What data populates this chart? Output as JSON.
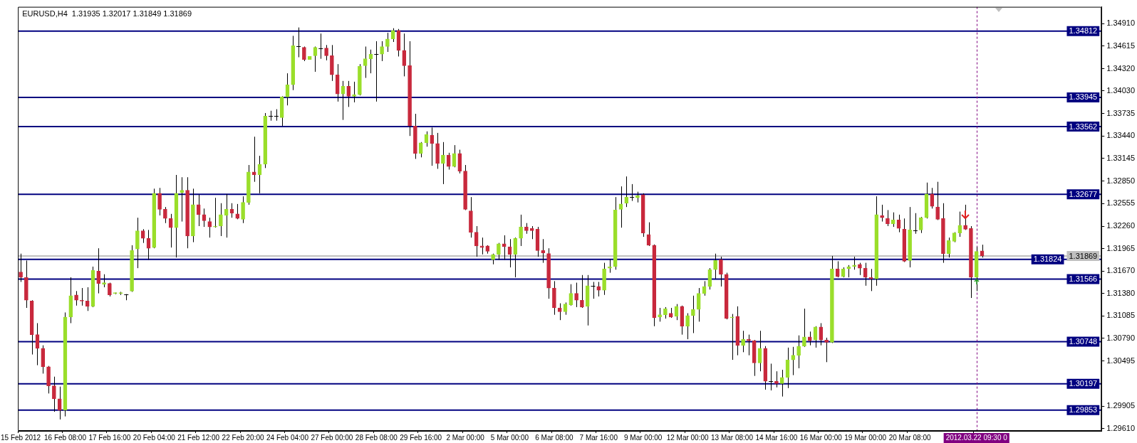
{
  "chart_data": {
    "type": "candlestick",
    "title": "EURUSD,H4  1.31935 1.32017 1.31849 1.31869",
    "categories": [
      "15 Feb 2012",
      null,
      null,
      null,
      null,
      null,
      null,
      null,
      "16 Feb 08:00",
      null,
      null,
      null,
      null,
      null,
      null,
      null,
      "17 Feb 16:00",
      null,
      null,
      null,
      null,
      null,
      null,
      null,
      "20 Feb 04:00",
      null,
      null,
      null,
      null,
      null,
      null,
      null,
      "21 Feb 12:00",
      null,
      null,
      null,
      null,
      null,
      null,
      null,
      "22 Feb 20:00",
      null,
      null,
      null,
      null,
      null,
      null,
      null,
      "24 Feb 04:00",
      null,
      null,
      null,
      null,
      null,
      null,
      null,
      "27 Feb 00:00",
      null,
      null,
      null,
      null,
      null,
      null,
      null,
      "28 Feb 08:00",
      null,
      null,
      null,
      null,
      null,
      null,
      null,
      "29 Feb 16:00",
      null,
      null,
      null,
      null,
      null,
      null,
      null,
      "2 Mar 00:00",
      null,
      null,
      null,
      null,
      null,
      null,
      null,
      "5 Mar 00:00",
      null,
      null,
      null,
      null,
      null,
      null,
      null,
      "6 Mar 08:00",
      null,
      null,
      null,
      null,
      null,
      null,
      null,
      "7 Mar 16:00",
      null,
      null,
      null,
      null,
      null,
      null,
      null,
      "9 Mar 00:00",
      null,
      null,
      null,
      null,
      null,
      null,
      null,
      "12 Mar 00:00",
      null,
      null,
      null,
      null,
      null,
      null,
      null,
      "13 Mar 08:00",
      null,
      null,
      null,
      null,
      null,
      null,
      null,
      "14 Mar 16:00",
      null,
      null,
      null,
      null,
      null,
      null,
      null,
      "16 Mar 00:00",
      null,
      null,
      null,
      null,
      null,
      null,
      null,
      "19 Mar 00:00",
      null,
      null,
      null,
      null,
      null,
      null,
      null,
      "20 Mar 08:00",
      null,
      null,
      null,
      null,
      null,
      null,
      null,
      null,
      null,
      null,
      null,
      "2012.03.22 09:30 0",
      null,
      null,
      null,
      null,
      null,
      null,
      null,
      null,
      null,
      null,
      null,
      null,
      null,
      null,
      null,
      null,
      null,
      null,
      null,
      null,
      null,
      null
    ],
    "ohlc": [
      [
        1.3166,
        1.319,
        1.3153,
        1.3159
      ],
      [
        1.3159,
        1.3181,
        1.3119,
        1.3129
      ],
      [
        1.3128,
        1.3129,
        1.3058,
        1.3084
      ],
      [
        1.3084,
        1.3099,
        1.3044,
        1.3066
      ],
      [
        1.3066,
        1.307,
        1.3033,
        1.3042
      ],
      [
        1.3042,
        1.3043,
        1.3007,
        1.3017
      ],
      [
        1.3017,
        1.3029,
        1.2983,
        1.3
      ],
      [
        1.3,
        1.3016,
        1.2973,
        1.2985
      ],
      [
        1.2985,
        1.3113,
        1.2977,
        1.3107
      ],
      [
        1.3107,
        1.3159,
        1.3099,
        1.3135
      ],
      [
        1.3136,
        1.3141,
        1.3122,
        1.3129
      ],
      [
        1.3129,
        1.3145,
        1.3122,
        1.3128
      ],
      [
        1.3128,
        1.3146,
        1.3115,
        1.3121
      ],
      [
        1.3121,
        1.3173,
        1.312,
        1.3168
      ],
      [
        1.3167,
        1.3197,
        1.3138,
        1.3151
      ],
      [
        1.315,
        1.3163,
        1.3146,
        1.3152
      ],
      [
        1.3151,
        1.3152,
        1.3134,
        1.3136
      ],
      [
        1.3138,
        1.3139,
        1.3137,
        1.3139
      ],
      [
        1.3138,
        1.314,
        1.3136,
        1.3139
      ],
      [
        1.3137,
        1.3137,
        1.3129,
        1.3137
      ],
      [
        1.3141,
        1.3201,
        1.314,
        1.3194
      ],
      [
        1.3196,
        1.3237,
        1.3171,
        1.322
      ],
      [
        1.322,
        1.3222,
        1.3204,
        1.321
      ],
      [
        1.321,
        1.3221,
        1.3182,
        1.3197
      ],
      [
        1.3198,
        1.3275,
        1.3197,
        1.3269
      ],
      [
        1.3269,
        1.3276,
        1.324,
        1.3248
      ],
      [
        1.3248,
        1.3251,
        1.323,
        1.3236
      ],
      [
        1.3236,
        1.3242,
        1.3198,
        1.3224
      ],
      [
        1.3224,
        1.3293,
        1.3185,
        1.3269
      ],
      [
        1.327,
        1.329,
        1.3232,
        1.3273
      ],
      [
        1.3273,
        1.329,
        1.3197,
        1.3213
      ],
      [
        1.3213,
        1.3275,
        1.3205,
        1.3254
      ],
      [
        1.3254,
        1.3267,
        1.3226,
        1.3241
      ],
      [
        1.3241,
        1.3249,
        1.3225,
        1.3233
      ],
      [
        1.3232,
        1.3237,
        1.3211,
        1.3225
      ],
      [
        1.3225,
        1.3263,
        1.3224,
        1.3226
      ],
      [
        1.3226,
        1.3256,
        1.3213,
        1.3241
      ],
      [
        1.324,
        1.3268,
        1.3211,
        1.3248
      ],
      [
        1.3248,
        1.3256,
        1.3237,
        1.3243
      ],
      [
        1.3242,
        1.3255,
        1.3235,
        1.3236
      ],
      [
        1.3235,
        1.3265,
        1.323,
        1.3257
      ],
      [
        1.3257,
        1.3306,
        1.3254,
        1.3297
      ],
      [
        1.3297,
        1.3343,
        1.3284,
        1.3293
      ],
      [
        1.3293,
        1.3318,
        1.3269,
        1.3307
      ],
      [
        1.3307,
        1.3374,
        1.3302,
        1.337
      ],
      [
        1.337,
        1.3377,
        1.3364,
        1.337
      ],
      [
        1.337,
        1.3379,
        1.3364,
        1.337
      ],
      [
        1.3368,
        1.3396,
        1.3357,
        1.3395
      ],
      [
        1.3395,
        1.3426,
        1.3384,
        1.3411
      ],
      [
        1.3411,
        1.3475,
        1.3404,
        1.3462
      ],
      [
        1.3461,
        1.3486,
        1.3447,
        1.3461
      ],
      [
        1.346,
        1.3461,
        1.3442,
        1.3444
      ],
      [
        1.3444,
        1.3448,
        1.3444,
        1.3448
      ],
      [
        1.3449,
        1.3461,
        1.3428,
        1.346
      ],
      [
        1.3459,
        1.3478,
        1.3445,
        1.3459
      ],
      [
        1.3459,
        1.3463,
        1.3443,
        1.3449
      ],
      [
        1.3449,
        1.3463,
        1.3416,
        1.3424
      ],
      [
        1.3424,
        1.3438,
        1.3389,
        1.3399
      ],
      [
        1.3399,
        1.3416,
        1.3365,
        1.3409
      ],
      [
        1.3409,
        1.3416,
        1.3382,
        1.3396
      ],
      [
        1.3396,
        1.3415,
        1.3388,
        1.3398
      ],
      [
        1.3398,
        1.3438,
        1.3397,
        1.3435
      ],
      [
        1.3436,
        1.3461,
        1.342,
        1.3445
      ],
      [
        1.3445,
        1.3457,
        1.3426,
        1.3451
      ],
      [
        1.3451,
        1.3468,
        1.3389,
        1.3451
      ],
      [
        1.3451,
        1.3468,
        1.3442,
        1.3461
      ],
      [
        1.3461,
        1.3479,
        1.3454,
        1.3471
      ],
      [
        1.3471,
        1.3485,
        1.3467,
        1.3482
      ],
      [
        1.3482,
        1.3484,
        1.3448,
        1.3456
      ],
      [
        1.3456,
        1.3478,
        1.3422,
        1.3436
      ],
      [
        1.3436,
        1.3468,
        1.3344,
        1.3357
      ],
      [
        1.3357,
        1.3373,
        1.3314,
        1.3321
      ],
      [
        1.3321,
        1.3336,
        1.3316,
        1.3335
      ],
      [
        1.3335,
        1.335,
        1.333,
        1.3346
      ],
      [
        1.3345,
        1.3355,
        1.3305,
        1.3334
      ],
      [
        1.3334,
        1.3348,
        1.3301,
        1.3308
      ],
      [
        1.3308,
        1.3336,
        1.3281,
        1.3319
      ],
      [
        1.3319,
        1.3322,
        1.33,
        1.3304
      ],
      [
        1.3304,
        1.3332,
        1.3303,
        1.3321
      ],
      [
        1.3321,
        1.3326,
        1.3295,
        1.3298
      ],
      [
        1.3298,
        1.3306,
        1.3247,
        1.3248
      ],
      [
        1.3246,
        1.3264,
        1.3211,
        1.3218
      ],
      [
        1.3218,
        1.3226,
        1.3186,
        1.32
      ],
      [
        1.32,
        1.3211,
        1.3189,
        1.3198
      ],
      [
        1.32,
        1.3201,
        1.319,
        1.3193
      ],
      [
        1.3182,
        1.319,
        1.3176,
        1.3189
      ],
      [
        1.3189,
        1.3204,
        1.3182,
        1.3203
      ],
      [
        1.3203,
        1.3214,
        1.3182,
        1.3199
      ],
      [
        1.3199,
        1.3209,
        1.3172,
        1.3189
      ],
      [
        1.3189,
        1.3211,
        1.3159,
        1.321
      ],
      [
        1.321,
        1.3241,
        1.32,
        1.3225
      ],
      [
        1.3225,
        1.323,
        1.3216,
        1.322
      ],
      [
        1.3223,
        1.3226,
        1.3209,
        1.322
      ],
      [
        1.3222,
        1.3225,
        1.3186,
        1.3194
      ],
      [
        1.3194,
        1.3209,
        1.3178,
        1.3191
      ],
      [
        1.319,
        1.3197,
        1.3131,
        1.3145
      ],
      [
        1.3145,
        1.3154,
        1.311,
        1.3119
      ],
      [
        1.3119,
        1.3125,
        1.3103,
        1.3114
      ],
      [
        1.3114,
        1.3126,
        1.311,
        1.3124
      ],
      [
        1.3123,
        1.315,
        1.3122,
        1.3138
      ],
      [
        1.3138,
        1.3152,
        1.312,
        1.3129
      ],
      [
        1.3129,
        1.3162,
        1.3119,
        1.312
      ],
      [
        1.3121,
        1.3162,
        1.3096,
        1.3148
      ],
      [
        1.3148,
        1.3153,
        1.3131,
        1.3148
      ],
      [
        1.3147,
        1.3153,
        1.3134,
        1.3142
      ],
      [
        1.3142,
        1.3178,
        1.3136,
        1.317
      ],
      [
        1.3171,
        1.3183,
        1.3165,
        1.3173
      ],
      [
        1.3173,
        1.3264,
        1.3169,
        1.3247
      ],
      [
        1.3248,
        1.3278,
        1.3224,
        1.3255
      ],
      [
        1.3256,
        1.3291,
        1.3251,
        1.3264
      ],
      [
        1.3264,
        1.3281,
        1.3259,
        1.3264
      ],
      [
        1.3263,
        1.3271,
        1.3257,
        1.3266
      ],
      [
        1.3267,
        1.3269,
        1.3212,
        1.3217
      ],
      [
        1.3215,
        1.3231,
        1.32,
        1.3201
      ],
      [
        1.3201,
        1.3202,
        1.3095,
        1.3106
      ],
      [
        1.3107,
        1.3119,
        1.3101,
        1.311
      ],
      [
        1.311,
        1.312,
        1.3105,
        1.3118
      ],
      [
        1.3112,
        1.3119,
        1.3106,
        1.3107
      ],
      [
        1.3108,
        1.3124,
        1.3103,
        1.3121
      ],
      [
        1.3121,
        1.3122,
        1.3084,
        1.3095
      ],
      [
        1.3095,
        1.3112,
        1.3078,
        1.3109
      ],
      [
        1.3109,
        1.3135,
        1.3086,
        1.3117
      ],
      [
        1.3117,
        1.3145,
        1.3101,
        1.3138
      ],
      [
        1.3138,
        1.3154,
        1.3135,
        1.3147
      ],
      [
        1.3147,
        1.3171,
        1.3143,
        1.3169
      ],
      [
        1.3169,
        1.319,
        1.3157,
        1.3181
      ],
      [
        1.3182,
        1.3186,
        1.3147,
        1.3163
      ],
      [
        1.3163,
        1.3165,
        1.3104,
        1.3105
      ],
      [
        1.3106,
        1.3111,
        1.3051,
        1.3107
      ],
      [
        1.3108,
        1.3121,
        1.3057,
        1.307
      ],
      [
        1.307,
        1.3089,
        1.3061,
        1.3078
      ],
      [
        1.3078,
        1.3084,
        1.3057,
        1.3076
      ],
      [
        1.3076,
        1.3077,
        1.303,
        1.3047
      ],
      [
        1.3047,
        1.3089,
        1.3036,
        1.3066
      ],
      [
        1.3066,
        1.3069,
        1.3012,
        1.3023
      ],
      [
        1.3023,
        1.3046,
        1.3011,
        1.3023
      ],
      [
        1.3023,
        1.3036,
        1.3015,
        1.302
      ],
      [
        1.302,
        1.3038,
        1.3003,
        1.3028
      ],
      [
        1.3028,
        1.3067,
        1.3014,
        1.3051
      ],
      [
        1.3051,
        1.3068,
        1.3031,
        1.3057
      ],
      [
        1.3057,
        1.3083,
        1.304,
        1.3069
      ],
      [
        1.3069,
        1.3118,
        1.3068,
        1.3081
      ],
      [
        1.3081,
        1.3088,
        1.307,
        1.3076
      ],
      [
        1.3077,
        1.3095,
        1.3067,
        1.3094
      ],
      [
        1.3094,
        1.3099,
        1.307,
        1.3077
      ],
      [
        1.3077,
        1.308,
        1.3048,
        1.3074
      ],
      [
        1.3074,
        1.3187,
        1.3073,
        1.317
      ],
      [
        1.317,
        1.318,
        1.3159,
        1.316
      ],
      [
        1.316,
        1.3172,
        1.3159,
        1.317
      ],
      [
        1.317,
        1.3175,
        1.3159,
        1.3173
      ],
      [
        1.3173,
        1.3186,
        1.3169,
        1.3175
      ],
      [
        1.3176,
        1.3178,
        1.3162,
        1.3171
      ],
      [
        1.3171,
        1.3178,
        1.3148,
        1.3159
      ],
      [
        1.3159,
        1.317,
        1.3141,
        1.3157
      ],
      [
        1.3157,
        1.3265,
        1.3148,
        1.3241
      ],
      [
        1.324,
        1.3254,
        1.3232,
        1.3237
      ],
      [
        1.3236,
        1.3247,
        1.3226,
        1.3229
      ],
      [
        1.3229,
        1.3244,
        1.3225,
        1.3234
      ],
      [
        1.3234,
        1.3241,
        1.3218,
        1.3223
      ],
      [
        1.3222,
        1.3236,
        1.3179,
        1.318
      ],
      [
        1.3181,
        1.3251,
        1.3172,
        1.3221
      ],
      [
        1.322,
        1.3243,
        1.3216,
        1.322
      ],
      [
        1.3221,
        1.3238,
        1.3217,
        1.3237
      ],
      [
        1.3237,
        1.3283,
        1.3236,
        1.3268
      ],
      [
        1.3268,
        1.3276,
        1.3249,
        1.3252
      ],
      [
        1.3251,
        1.3284,
        1.3234,
        1.3235
      ],
      [
        1.3236,
        1.3256,
        1.3178,
        1.319
      ],
      [
        1.319,
        1.3211,
        1.3185,
        1.3207
      ],
      [
        1.3206,
        1.3218,
        1.3205,
        1.3217
      ],
      [
        1.3217,
        1.3245,
        1.3212,
        1.3227
      ],
      [
        1.3227,
        1.3254,
        1.3221,
        1.3222
      ],
      [
        1.3223,
        1.3226,
        1.3132,
        1.3159
      ],
      [
        1.3159,
        1.3199,
        1.3141,
        1.3193
      ],
      [
        1.31935,
        1.32017,
        1.31849,
        1.31869
      ],
      null,
      null,
      null,
      null,
      null,
      null,
      null,
      null,
      null,
      null,
      null,
      null,
      null,
      null,
      null,
      null,
      null,
      null,
      null,
      null,
      null
    ],
    "colors": [
      "#c8283c",
      "#c8283c",
      "#c8283c",
      "#c8283c",
      "#c8283c",
      "#c8283c",
      "#c8283c",
      "#c8283c",
      "#9ade2a",
      "#9ade2a",
      "#c8283c",
      "#c8283c",
      "#c8283c",
      "#9ade2a",
      "#c8283c",
      "#9ade2a",
      "#c8283c",
      "#9ade2a",
      "#9ade2a",
      "#000000",
      "#9ade2a",
      "#9ade2a",
      "#c8283c",
      "#c8283c",
      "#9ade2a",
      "#c8283c",
      "#c8283c",
      "#c8283c",
      "#9ade2a",
      "#9ade2a",
      "#c8283c",
      "#9ade2a",
      "#c8283c",
      "#c8283c",
      "#c8283c",
      "#9ade2a",
      "#9ade2a",
      "#9ade2a",
      "#c8283c",
      "#c8283c",
      "#9ade2a",
      "#9ade2a",
      "#c8283c",
      "#9ade2a",
      "#9ade2a",
      "#000000",
      "#000000",
      "#9ade2a",
      "#9ade2a",
      "#9ade2a",
      "#000000",
      "#c8283c",
      "#9ade2a",
      "#9ade2a",
      "#000000",
      "#c8283c",
      "#c8283c",
      "#c8283c",
      "#9ade2a",
      "#c8283c",
      "#9ade2a",
      "#9ade2a",
      "#9ade2a",
      "#9ade2a",
      "#000000",
      "#9ade2a",
      "#9ade2a",
      "#9ade2a",
      "#c8283c",
      "#c8283c",
      "#c8283c",
      "#c8283c",
      "#9ade2a",
      "#9ade2a",
      "#c8283c",
      "#c8283c",
      "#9ade2a",
      "#c8283c",
      "#9ade2a",
      "#c8283c",
      "#c8283c",
      "#c8283c",
      "#c8283c",
      "#c8283c",
      "#c8283c",
      "#9ade2a",
      "#9ade2a",
      "#c8283c",
      "#c8283c",
      "#9ade2a",
      "#9ade2a",
      "#c8283c",
      "#c8283c",
      "#c8283c",
      "#c8283c",
      "#c8283c",
      "#c8283c",
      "#c8283c",
      "#9ade2a",
      "#9ade2a",
      "#c8283c",
      "#c8283c",
      "#9ade2a",
      "#000000",
      "#c8283c",
      "#9ade2a",
      "#9ade2a",
      "#9ade2a",
      "#9ade2a",
      "#9ade2a",
      "#000000",
      "#9ade2a",
      "#c8283c",
      "#c8283c",
      "#c8283c",
      "#9ade2a",
      "#9ade2a",
      "#c8283c",
      "#9ade2a",
      "#c8283c",
      "#9ade2a",
      "#9ade2a",
      "#9ade2a",
      "#9ade2a",
      "#9ade2a",
      "#9ade2a",
      "#c8283c",
      "#c8283c",
      "#9ade2a",
      "#c8283c",
      "#9ade2a",
      "#c8283c",
      "#c8283c",
      "#9ade2a",
      "#c8283c",
      "#000000",
      "#c8283c",
      "#9ade2a",
      "#9ade2a",
      "#9ade2a",
      "#9ade2a",
      "#9ade2a",
      "#c8283c",
      "#9ade2a",
      "#c8283c",
      "#c8283c",
      "#9ade2a",
      "#c8283c",
      "#9ade2a",
      "#9ade2a",
      "#9ade2a",
      "#c8283c",
      "#c8283c",
      "#c8283c",
      "#9ade2a",
      "#c8283c",
      "#c8283c",
      "#9ade2a",
      "#c8283c",
      "#c8283c",
      "#9ade2a",
      "#000000",
      "#9ade2a",
      "#9ade2a",
      "#c8283c",
      "#c8283c",
      "#c8283c",
      "#9ade2a",
      "#9ade2a",
      "#9ade2a",
      "#c8283c",
      "#c8283c",
      "#9ade2a",
      "#c8283c",
      null,
      null,
      null,
      null,
      null,
      null,
      null,
      null,
      null,
      null,
      null,
      null,
      null,
      null,
      null,
      null,
      null,
      null,
      null,
      null,
      null
    ],
    "ylim": [
      1.2958,
      1.3513
    ],
    "yticks": [
      {
        "value": 1.2961,
        "label": "1.29610"
      },
      {
        "value": 1.29905,
        "label": "1.29905"
      },
      {
        "value": 1.30495,
        "label": "1.30495"
      },
      {
        "value": 1.3079,
        "label": "1.30790"
      },
      {
        "value": 1.31085,
        "label": "1.31085"
      },
      {
        "value": 1.3138,
        "label": "1.31380"
      },
      {
        "value": 1.3167,
        "label": "1.31670"
      },
      {
        "value": 1.31965,
        "label": "1.31965"
      },
      {
        "value": 1.3226,
        "label": "1.32260"
      },
      {
        "value": 1.32555,
        "label": "1.32555"
      },
      {
        "value": 1.3285,
        "label": "1.32850"
      },
      {
        "value": 1.33145,
        "label": "1.33145"
      },
      {
        "value": 1.3344,
        "label": "1.33440"
      },
      {
        "value": 1.33735,
        "label": "1.33735"
      },
      {
        "value": 1.3403,
        "label": "1.34030"
      },
      {
        "value": 1.3432,
        "label": "1.34320"
      },
      {
        "value": 1.34615,
        "label": "1.34615"
      },
      {
        "value": 1.3491,
        "label": "1.34910"
      }
    ],
    "ref_lines": [
      {
        "axis": "y",
        "value": 1.34812,
        "label": "1.34812",
        "color": "#000080"
      },
      {
        "axis": "y",
        "value": 1.33945,
        "label": "1.33945",
        "color": "#000080"
      },
      {
        "axis": "y",
        "value": 1.33562,
        "label": "1.33562",
        "color": "#000080"
      },
      {
        "axis": "y",
        "value": 1.32677,
        "label": "1.32677",
        "color": "#000080"
      },
      {
        "axis": "y",
        "value": 1.31869,
        "label": "1.31869",
        "color": "#c0c0c0"
      },
      {
        "axis": "y",
        "value": 1.31824,
        "label": "1.31824",
        "color": "#000080"
      },
      {
        "axis": "y",
        "value": 1.31566,
        "label": "1.31566",
        "color": "#000080"
      },
      {
        "axis": "y",
        "value": 1.30748,
        "label": "1.30748",
        "color": "#000080"
      },
      {
        "axis": "y",
        "value": 1.30197,
        "label": "1.30197",
        "color": "#000080"
      },
      {
        "axis": "y",
        "value": 1.29853,
        "label": "1.29853",
        "color": "#000080"
      },
      {
        "axis": "x",
        "value": "2012.03.22 09:30 0",
        "color": "#800080",
        "line_style": "dashed"
      }
    ]
  }
}
